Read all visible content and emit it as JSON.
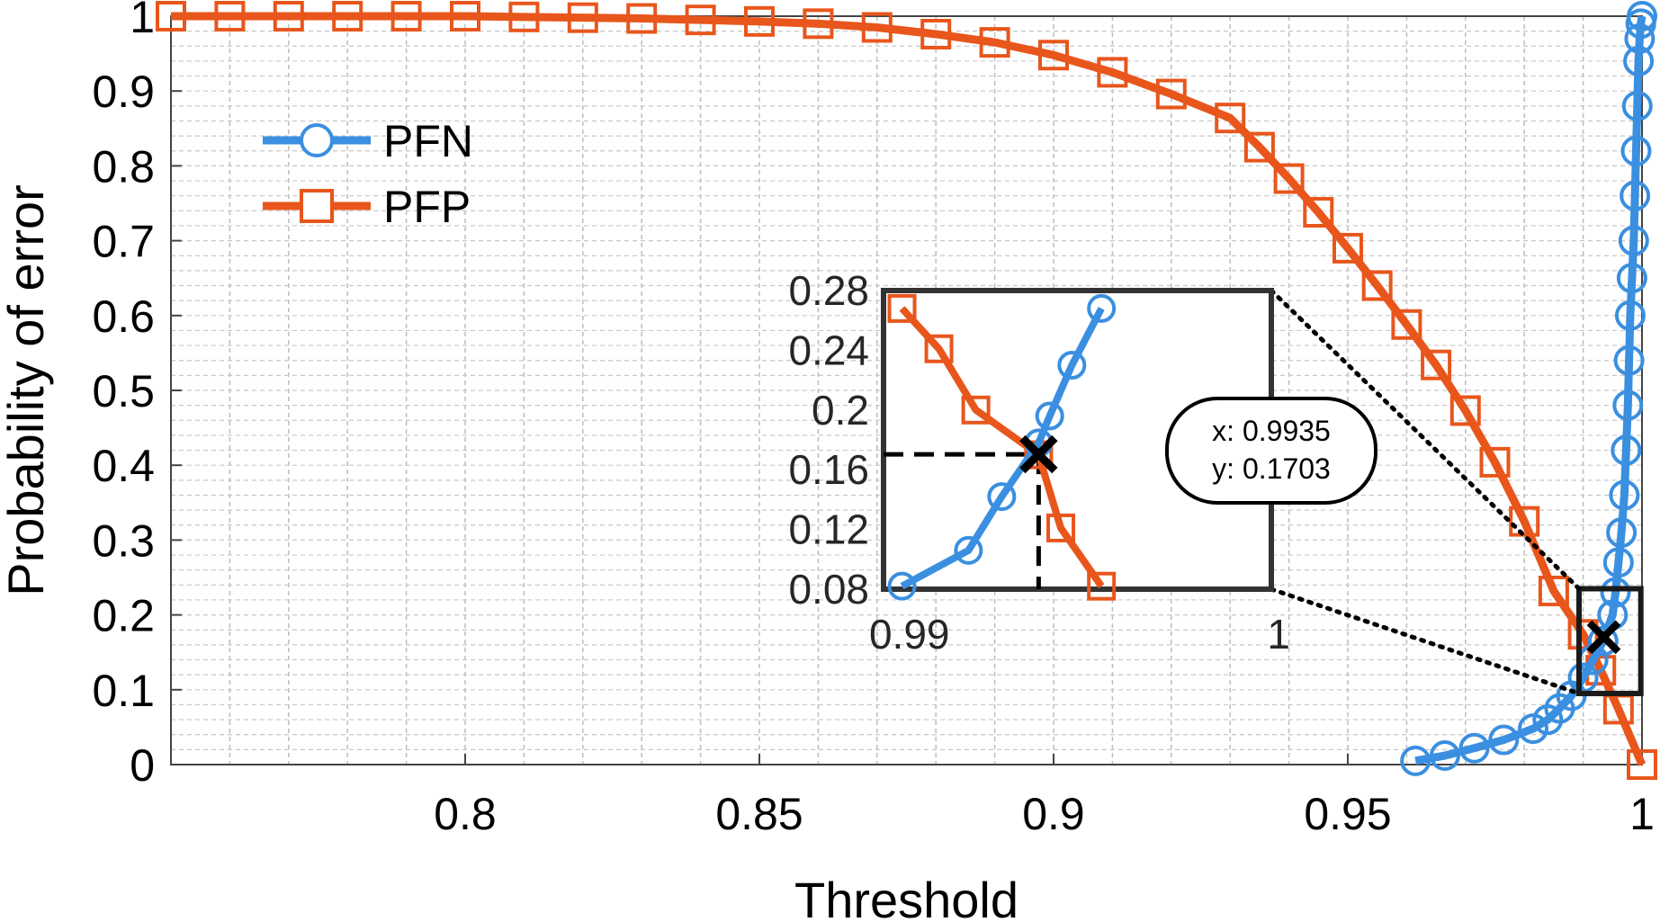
{
  "chart_data": {
    "type": "line",
    "title": "",
    "xlabel": "Threshold",
    "ylabel": "Probability of error",
    "xlim": [
      0.75,
      1.0
    ],
    "ylim": [
      0,
      1
    ],
    "xticks": [
      0.8,
      0.85,
      0.9,
      0.95,
      1
    ],
    "xtick_labels": [
      "0.8",
      "0.85",
      "0.9",
      "0.95",
      "1"
    ],
    "yticks": [
      0,
      0.1,
      0.2,
      0.3,
      0.4,
      0.5,
      0.6,
      0.7,
      0.8,
      0.9,
      1
    ],
    "ytick_labels": [
      "0",
      "0.1",
      "0.2",
      "0.3",
      "0.4",
      "0.5",
      "0.6",
      "0.7",
      "0.8",
      "0.9",
      "1"
    ],
    "grid": true,
    "legend_position": "top-left",
    "series": [
      {
        "name": "PFN",
        "color": "#3a8fe0",
        "marker": "circle",
        "x": [
          0.9615,
          0.9665,
          0.9715,
          0.9765,
          0.9815,
          0.984,
          0.986,
          0.988,
          0.99,
          0.9917,
          0.9934,
          0.995,
          0.9955,
          0.996,
          0.9965,
          0.997,
          0.9973,
          0.9976,
          0.9978,
          0.998,
          0.9983,
          0.9986,
          0.9988,
          0.999,
          0.9992,
          0.9994,
          0.9996,
          0.9998,
          1.0
        ],
        "y": [
          0.005,
          0.012,
          0.022,
          0.033,
          0.048,
          0.06,
          0.075,
          0.092,
          0.116,
          0.14,
          0.165,
          0.2,
          0.23,
          0.27,
          0.31,
          0.36,
          0.42,
          0.48,
          0.54,
          0.6,
          0.65,
          0.7,
          0.76,
          0.82,
          0.88,
          0.94,
          0.97,
          0.99,
          1.0
        ]
      },
      {
        "name": "PFP",
        "color": "#e8561c",
        "marker": "square",
        "x": [
          0.75,
          0.76,
          0.77,
          0.78,
          0.79,
          0.8,
          0.81,
          0.82,
          0.83,
          0.84,
          0.85,
          0.86,
          0.87,
          0.88,
          0.89,
          0.9,
          0.91,
          0.92,
          0.93,
          0.935,
          0.94,
          0.945,
          0.95,
          0.955,
          0.96,
          0.965,
          0.97,
          0.975,
          0.98,
          0.985,
          0.99,
          0.993,
          0.996,
          1.0
        ],
        "y": [
          1.0,
          1.0,
          1.0,
          1.0,
          1.0,
          1.0,
          0.999,
          0.998,
          0.997,
          0.995,
          0.993,
          0.99,
          0.985,
          0.976,
          0.965,
          0.948,
          0.925,
          0.896,
          0.864,
          0.825,
          0.783,
          0.738,
          0.69,
          0.64,
          0.588,
          0.534,
          0.473,
          0.404,
          0.325,
          0.232,
          0.174,
          0.126,
          0.074,
          0.0
        ]
      }
    ],
    "inset": {
      "xlim": [
        0.9893,
        0.9998
      ],
      "ylim": [
        0.08,
        0.28
      ],
      "xtick_labels": [
        "0.99",
        "1"
      ],
      "xticks": [
        0.99,
        1.0
      ],
      "ytick_labels": [
        "0.28",
        "0.24",
        "0.2",
        "0.16",
        "0.12",
        "0.08"
      ],
      "yticks": [
        0.28,
        0.24,
        0.2,
        0.16,
        0.12,
        0.08
      ],
      "PFN": {
        "x": [
          0.9898,
          0.9916,
          0.9925,
          0.9935,
          0.9938,
          0.9944,
          0.9952
        ],
        "y": [
          0.082,
          0.106,
          0.142,
          0.178,
          0.196,
          0.23,
          0.268
        ]
      },
      "PFP": {
        "x": [
          0.9898,
          0.9908,
          0.9918,
          0.9935,
          0.9941,
          0.9952
        ],
        "y": [
          0.268,
          0.241,
          0.2,
          0.17,
          0.121,
          0.082
        ]
      }
    },
    "annotation": {
      "x_text": "x: 0.9935",
      "y_text": "y: 0.1703",
      "x": 0.9935,
      "y": 0.1703
    },
    "zoom_box": {
      "xlim": [
        0.9893,
        0.9998
      ],
      "ylim": [
        0.095,
        0.235
      ]
    }
  }
}
